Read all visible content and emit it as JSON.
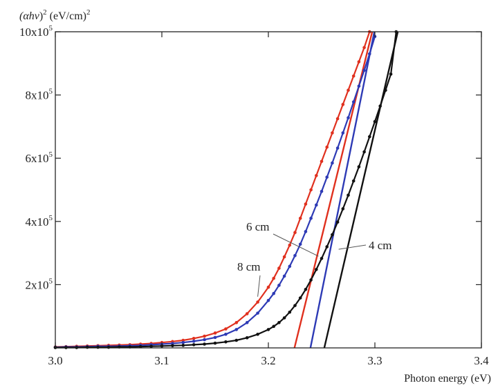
{
  "chart_data": {
    "type": "line",
    "title": "",
    "ylabel": "(αhv)² (eV/cm)²",
    "xlabel": "Photon energy (eV)",
    "xlim": [
      3.0,
      3.4
    ],
    "ylim": [
      0,
      1000000
    ],
    "x_ticks": [
      {
        "value": 3.0,
        "label": "3.0"
      },
      {
        "value": 3.1,
        "label": "3.1"
      },
      {
        "value": 3.2,
        "label": "3.2"
      },
      {
        "value": 3.3,
        "label": "3.3"
      },
      {
        "value": 3.4,
        "label": "3.4"
      }
    ],
    "y_ticks": [
      {
        "value": 200000,
        "mant": "2x10",
        "exp": "5"
      },
      {
        "value": 400000,
        "mant": "4x10",
        "exp": "5"
      },
      {
        "value": 600000,
        "mant": "6x10",
        "exp": "5"
      },
      {
        "value": 800000,
        "mant": "8x10",
        "exp": "5"
      },
      {
        "value": 1000000,
        "mant": "10x10",
        "exp": "5"
      }
    ],
    "grid": false,
    "legend": "none",
    "series": [
      {
        "key": "s6",
        "name": "6 cm",
        "color": "#e0301e",
        "markers": true,
        "x": [
          3.0,
          3.01,
          3.02,
          3.03,
          3.04,
          3.05,
          3.06,
          3.07,
          3.08,
          3.09,
          3.1,
          3.11,
          3.12,
          3.13,
          3.14,
          3.15,
          3.16,
          3.17,
          3.18,
          3.19,
          3.2,
          3.205,
          3.21,
          3.215,
          3.22,
          3.225,
          3.23,
          3.235,
          3.24,
          3.245,
          3.25,
          3.255,
          3.26,
          3.265,
          3.27,
          3.275,
          3.28,
          3.285,
          3.29,
          3.295
        ],
        "y": [
          3000,
          4000,
          5000,
          6000,
          7000,
          8000,
          9000,
          10000,
          12000,
          14000,
          17000,
          20000,
          24000,
          30000,
          37000,
          47000,
          60000,
          80000,
          108000,
          145000,
          192000,
          220000,
          252000,
          288000,
          325000,
          365000,
          410000,
          455000,
          500000,
          545000,
          590000,
          635000,
          680000,
          725000,
          770000,
          815000,
          860000,
          905000,
          950000,
          1000000
        ]
      },
      {
        "key": "s8",
        "name": "8 cm",
        "color": "#2d3ab5",
        "markers": true,
        "x": [
          3.0,
          3.01,
          3.02,
          3.03,
          3.04,
          3.05,
          3.06,
          3.07,
          3.08,
          3.09,
          3.1,
          3.11,
          3.12,
          3.13,
          3.14,
          3.15,
          3.16,
          3.17,
          3.18,
          3.19,
          3.2,
          3.205,
          3.21,
          3.215,
          3.22,
          3.225,
          3.23,
          3.235,
          3.24,
          3.245,
          3.25,
          3.255,
          3.26,
          3.265,
          3.27,
          3.275,
          3.28,
          3.285,
          3.29,
          3.295,
          3.3
        ],
        "y": [
          2000,
          3000,
          3000,
          4000,
          5000,
          5000,
          6000,
          7000,
          8000,
          10000,
          12000,
          14000,
          17000,
          21000,
          26000,
          33000,
          43000,
          58000,
          80000,
          110000,
          150000,
          172000,
          198000,
          227000,
          258000,
          292000,
          328000,
          368000,
          410000,
          452000,
          495000,
          540000,
          585000,
          632000,
          680000,
          728000,
          778000,
          828000,
          878000,
          930000,
          985000
        ]
      },
      {
        "key": "s4",
        "name": "4 cm",
        "color": "#111111",
        "markers": true,
        "x": [
          3.0,
          3.01,
          3.02,
          3.03,
          3.04,
          3.05,
          3.06,
          3.07,
          3.08,
          3.09,
          3.1,
          3.11,
          3.12,
          3.13,
          3.14,
          3.15,
          3.16,
          3.17,
          3.18,
          3.19,
          3.2,
          3.205,
          3.21,
          3.215,
          3.22,
          3.225,
          3.23,
          3.235,
          3.24,
          3.245,
          3.25,
          3.255,
          3.26,
          3.265,
          3.27,
          3.275,
          3.28,
          3.285,
          3.29,
          3.295,
          3.3,
          3.305,
          3.31,
          3.315,
          3.32
        ],
        "y": [
          1000,
          1000,
          1000,
          2000,
          2000,
          2000,
          3000,
          3000,
          4000,
          5000,
          6000,
          7000,
          8000,
          10000,
          12000,
          15000,
          19000,
          24000,
          32000,
          43000,
          58000,
          68000,
          80000,
          95000,
          113000,
          134000,
          158000,
          185000,
          215000,
          248000,
          283000,
          320000,
          358000,
          398000,
          440000,
          483000,
          528000,
          573000,
          620000,
          668000,
          716000,
          765000,
          815000,
          866000,
          1000000
        ]
      }
    ],
    "tangents": [
      {
        "key": "t6",
        "color": "#e0301e",
        "x": [
          3.2245,
          3.2975
        ],
        "y": [
          0,
          1000000
        ]
      },
      {
        "key": "t8",
        "color": "#2d3ab5",
        "x": [
          3.2395,
          3.2995
        ],
        "y": [
          0,
          1000000
        ]
      },
      {
        "key": "t4",
        "color": "#111111",
        "x": [
          3.2525,
          3.3215
        ],
        "y": [
          0,
          1000000
        ]
      }
    ],
    "annotations": [
      {
        "key": "a6",
        "text": "6 cm",
        "pointer": {
          "x": 3.247,
          "y": 290000
        }
      },
      {
        "key": "a8",
        "text": "8 cm",
        "pointer": {
          "x": 3.19,
          "y": 162000
        }
      },
      {
        "key": "a4",
        "text": "4 cm",
        "pointer": {
          "x": 3.266,
          "y": 312000
        }
      }
    ]
  }
}
